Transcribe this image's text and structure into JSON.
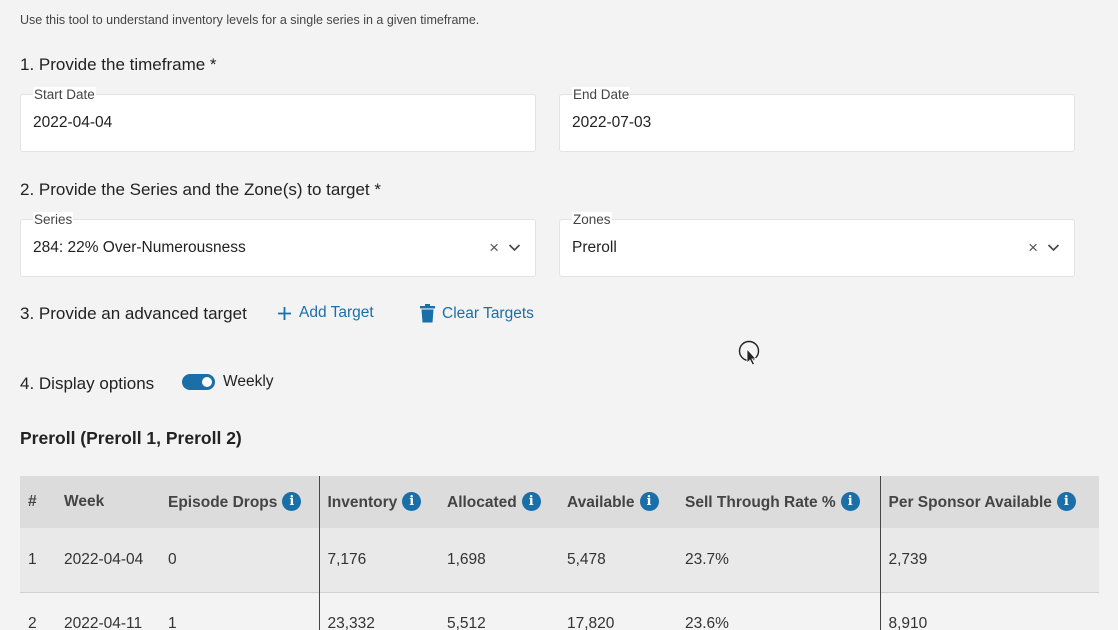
{
  "intro": "Use this tool to understand inventory levels for a single series in a given timeframe.",
  "sections": {
    "timeframe": "1. Provide the timeframe *",
    "series": "2. Provide the Series and the Zone(s) to target *",
    "advanced": "3. Provide an advanced target",
    "display": "4. Display options"
  },
  "fields": {
    "start_date": {
      "label": "Start Date",
      "value": "2022-04-04"
    },
    "end_date": {
      "label": "End Date",
      "value": "2022-07-03"
    },
    "series": {
      "label": "Series",
      "value": "284: 22% Over-Numerousness"
    },
    "zones": {
      "label": "Zones",
      "value": "Preroll"
    }
  },
  "clear_glyph": "×",
  "actions": {
    "add_target": "Add Target",
    "clear_targets": "Clear Targets"
  },
  "display_options": {
    "weekly_label": "Weekly",
    "weekly_enabled": true
  },
  "zone_title": "Preroll (Preroll 1, Preroll 2)",
  "table": {
    "headers": [
      "#",
      "Week",
      "Episode Drops",
      "Inventory",
      "Allocated",
      "Available",
      "Sell Through Rate %",
      "Per Sponsor Available"
    ],
    "info_glyph": "i",
    "rows": [
      [
        "1",
        "2022-04-04",
        "0",
        "7,176",
        "1,698",
        "5,478",
        "23.7%",
        "2,739"
      ],
      [
        "2",
        "2022-04-11",
        "1",
        "23,332",
        "5,512",
        "17,820",
        "23.6%",
        "8,910"
      ]
    ]
  },
  "colors": {
    "accent": "#1a6fa8",
    "background": "#f3f3f3",
    "header_bg": "#dcdcdc"
  }
}
